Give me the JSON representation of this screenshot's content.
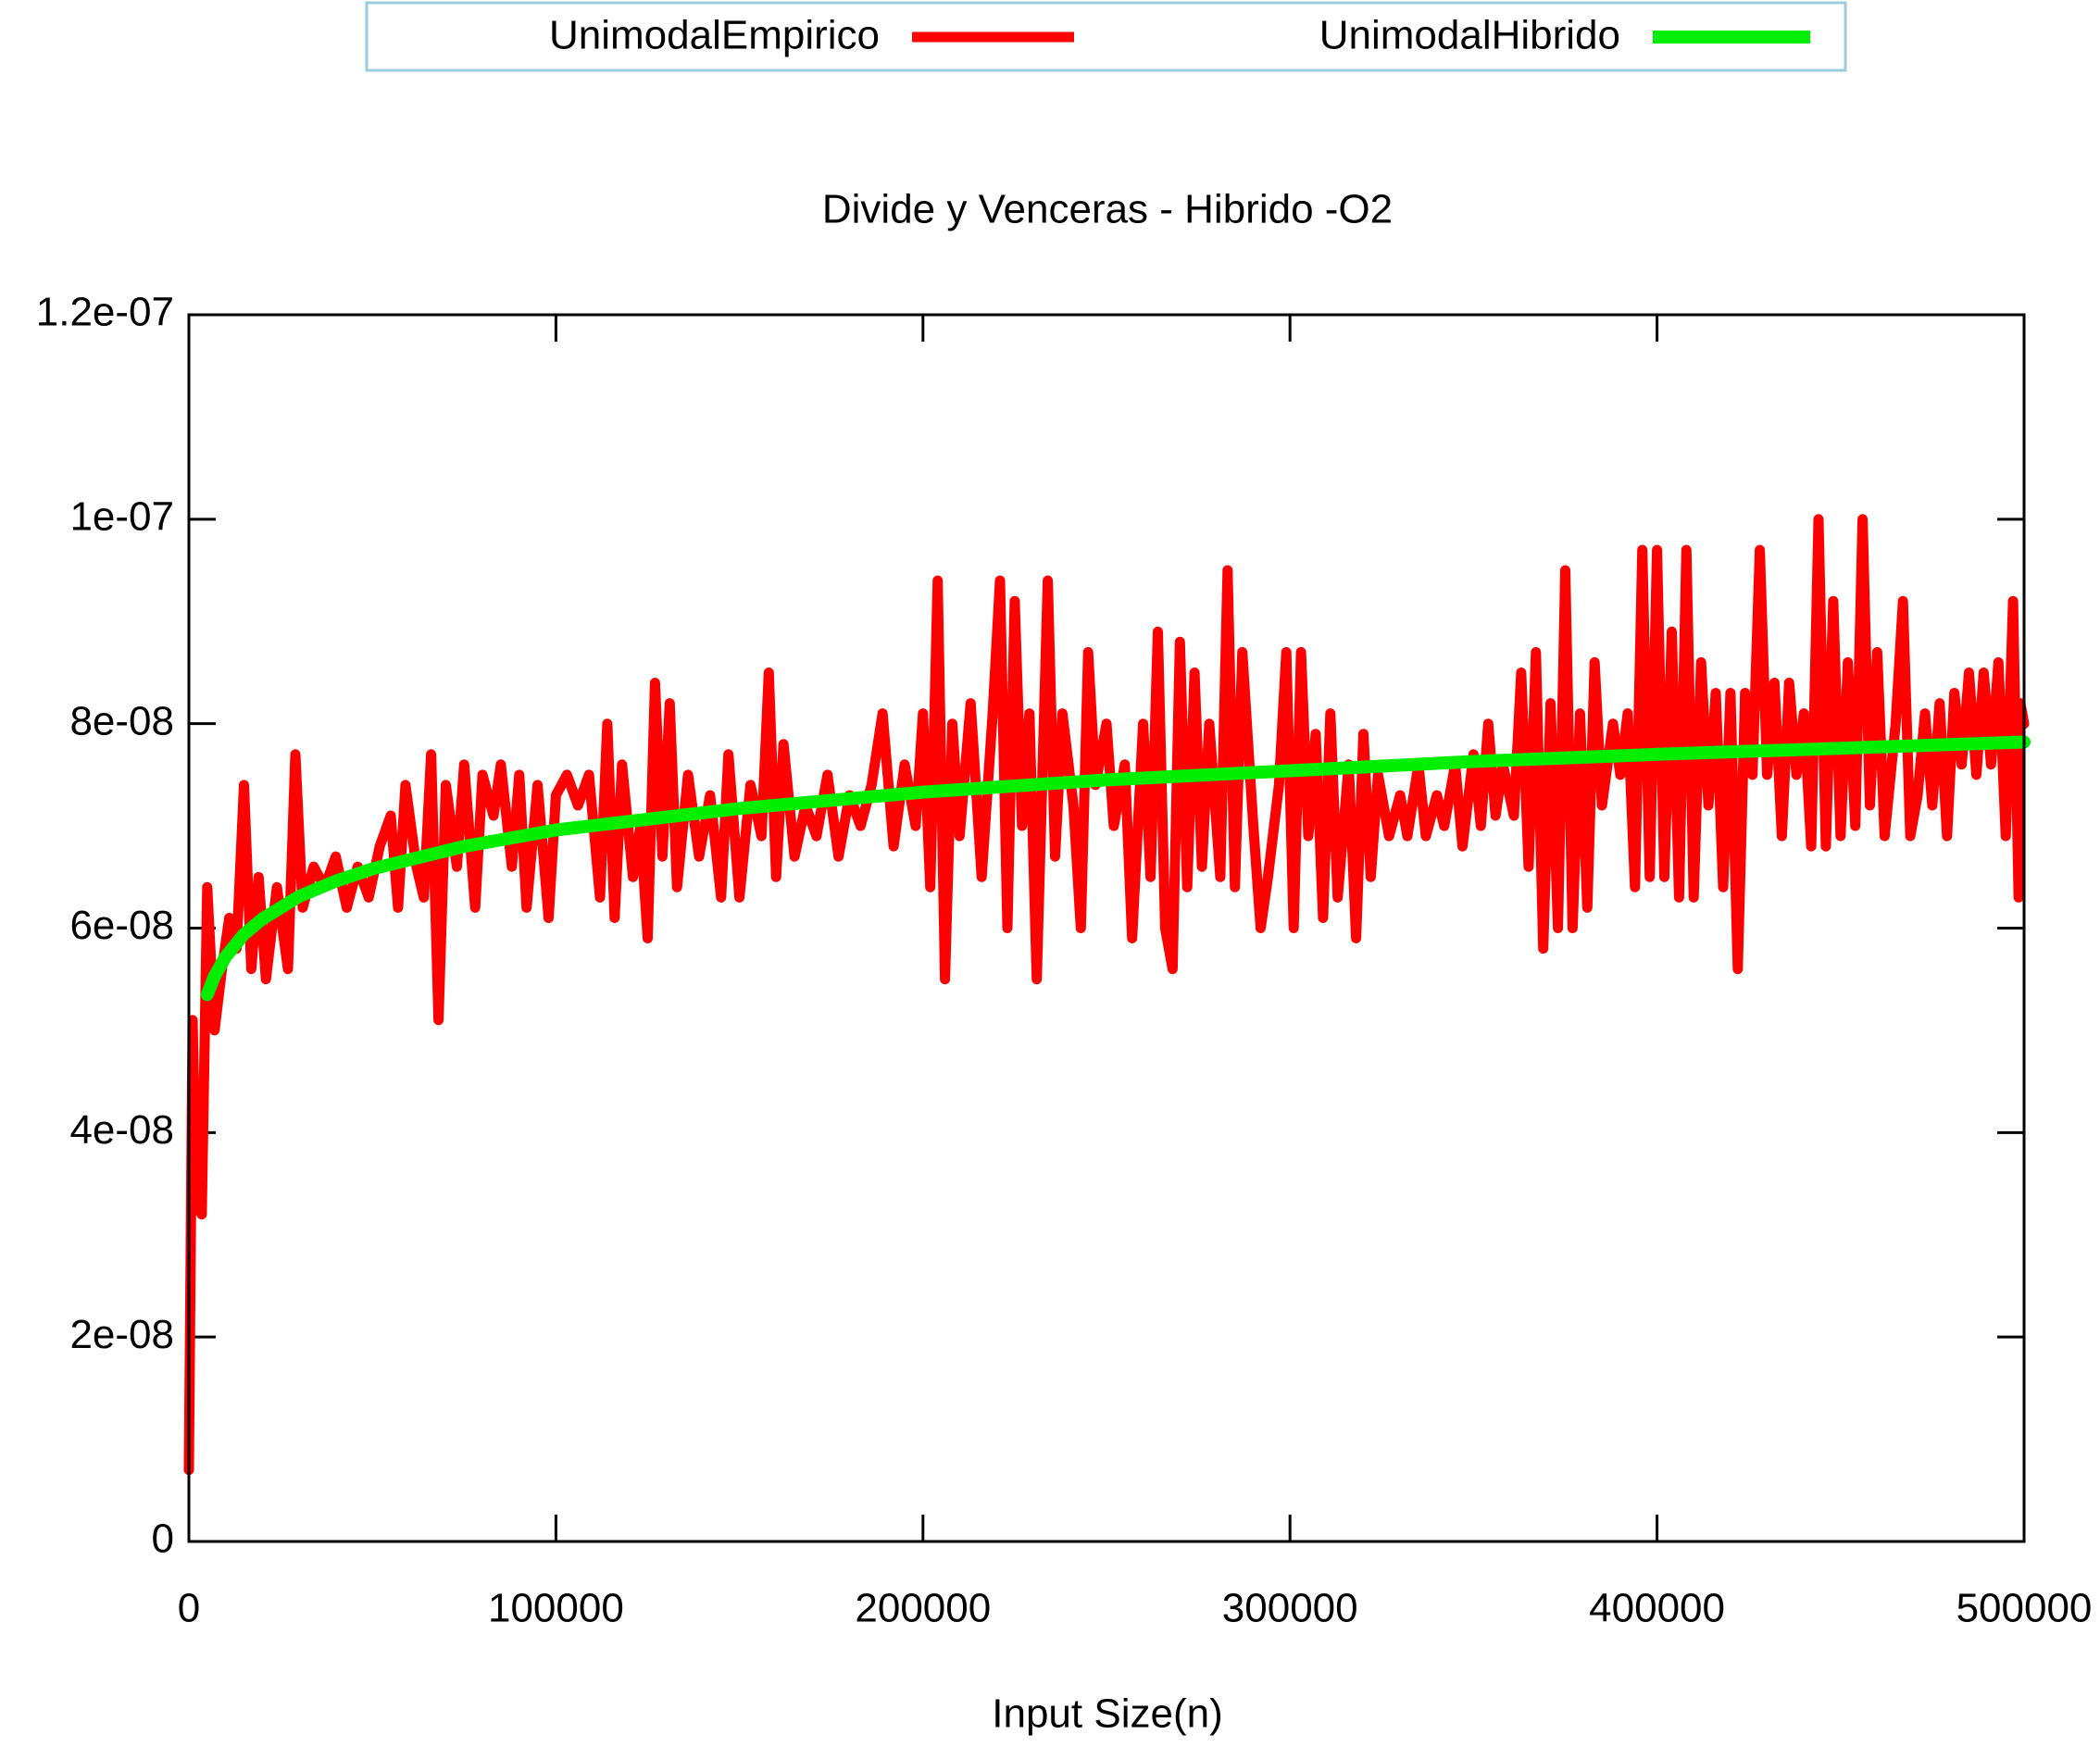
{
  "chart_data": {
    "type": "line",
    "title": "Divide y Venceras - Hibrido -O2",
    "xlabel": "Input Size(n)",
    "legend": "top",
    "xlim": [
      0,
      500000
    ],
    "xticks": [
      0,
      100000,
      200000,
      300000,
      400000,
      500000
    ],
    "ylim": [
      0,
      1.2e-07
    ],
    "yticks": [
      0,
      {
        "value": 2e-08,
        "label": "2e-08"
      },
      {
        "value": 4e-08,
        "label": "4e-08"
      },
      {
        "value": 6e-08,
        "label": "6e-08"
      },
      {
        "value": 8e-08,
        "label": "8e-08"
      },
      {
        "value": 1e-07,
        "label": "1e-07"
      },
      {
        "value": 1.2e-07,
        "label": "1.2e-07"
      }
    ],
    "series": [
      {
        "name": "UnimodalEmpirico",
        "color": "#ff0000",
        "x": [
          0,
          1000,
          2000,
          3500,
          5000,
          7000,
          9000,
          11000,
          13000,
          15000,
          17000,
          19000,
          21000,
          24000,
          27000,
          29000,
          31000,
          34000,
          37000,
          40000,
          43000,
          46000,
          49000,
          52000,
          55000,
          57000,
          59000,
          62000,
          64000,
          66000,
          68000,
          70000,
          73000,
          75000,
          78000,
          80000,
          83000,
          85000,
          88000,
          90000,
          92000,
          95000,
          98000,
          100000,
          103000,
          106000,
          109000,
          112000,
          114000,
          116000,
          118000,
          121000,
          123000,
          125000,
          127000,
          129000,
          131000,
          133000,
          136000,
          139000,
          142000,
          145000,
          147000,
          150000,
          153000,
          156000,
          158000,
          160000,
          162000,
          165000,
          168000,
          171000,
          174000,
          177000,
          180000,
          183000,
          186000,
          189000,
          192000,
          195000,
          198000,
          200000,
          202000,
          204000,
          206000,
          208000,
          210000,
          213000,
          216000,
          219000,
          221000,
          223000,
          225000,
          227000,
          229000,
          231000,
          234000,
          236000,
          238000,
          241000,
          243000,
          245000,
          247000,
          250000,
          252000,
          255000,
          257000,
          260000,
          262000,
          264000,
          266000,
          268000,
          270000,
          272000,
          274000,
          276000,
          278000,
          281000,
          283000,
          285000,
          287000,
          290000,
          292000,
          294000,
          297000,
          299000,
          301000,
          303000,
          305000,
          307000,
          309000,
          311000,
          313000,
          316000,
          318000,
          320000,
          322000,
          324000,
          327000,
          330000,
          332000,
          335000,
          337000,
          340000,
          342000,
          345000,
          347000,
          350000,
          352000,
          354000,
          356000,
          358000,
          361000,
          363000,
          365000,
          367000,
          369000,
          371000,
          373000,
          375000,
          377000,
          379000,
          381000,
          383000,
          385000,
          388000,
          390000,
          392000,
          394000,
          396000,
          398000,
          400000,
          402000,
          404000,
          406000,
          408000,
          410000,
          412000,
          414000,
          416000,
          418000,
          420000,
          422000,
          424000,
          426000,
          428000,
          430000,
          432000,
          434000,
          436000,
          438000,
          440000,
          442000,
          444000,
          446000,
          448000,
          450000,
          452000,
          454000,
          456000,
          458000,
          460000,
          462000,
          465000,
          467000,
          469000,
          471000,
          473000,
          475000,
          477000,
          479000,
          481000,
          483000,
          485000,
          487000,
          489000,
          491000,
          493000,
          495000,
          497000,
          498500,
          499000,
          500000
        ],
        "values": [
          7e-09,
          5.1e-08,
          3.3e-08,
          3.2e-08,
          6.4e-08,
          5e-08,
          5.6e-08,
          6.1e-08,
          5.8e-08,
          7.4e-08,
          5.6e-08,
          6.5e-08,
          5.5e-08,
          6.4e-08,
          5.6e-08,
          7.7e-08,
          6.2e-08,
          6.6e-08,
          6.4e-08,
          6.7e-08,
          6.2e-08,
          6.6e-08,
          6.3e-08,
          6.8e-08,
          7.1e-08,
          6.2e-08,
          7.4e-08,
          6.6e-08,
          6.3e-08,
          7.7e-08,
          5.1e-08,
          7.4e-08,
          6.6e-08,
          7.6e-08,
          6.2e-08,
          7.5e-08,
          7.1e-08,
          7.6e-08,
          6.6e-08,
          7.5e-08,
          6.2e-08,
          7.4e-08,
          6.1e-08,
          7.3e-08,
          7.5e-08,
          7.2e-08,
          7.5e-08,
          6.3e-08,
          8e-08,
          6.1e-08,
          7.6e-08,
          6.5e-08,
          7e-08,
          5.9e-08,
          8.4e-08,
          6.7e-08,
          8.2e-08,
          6.4e-08,
          7.5e-08,
          6.7e-08,
          7.3e-08,
          6.3e-08,
          7.7e-08,
          6.3e-08,
          7.4e-08,
          6.9e-08,
          8.5e-08,
          6.5e-08,
          7.8e-08,
          6.7e-08,
          7.2e-08,
          6.9e-08,
          7.5e-08,
          6.7e-08,
          7.3e-08,
          7e-08,
          7.4e-08,
          8.1e-08,
          6.8e-08,
          7.6e-08,
          7e-08,
          8.1e-08,
          6.4e-08,
          9.4e-08,
          5.5e-08,
          8e-08,
          6.9e-08,
          8.2e-08,
          6.5e-08,
          8.1e-08,
          9.4e-08,
          6e-08,
          9.2e-08,
          7e-08,
          8.1e-08,
          5.5e-08,
          9.4e-08,
          6.7e-08,
          8.1e-08,
          7.2e-08,
          6e-08,
          8.7e-08,
          7.4e-08,
          8e-08,
          7e-08,
          7.6e-08,
          5.9e-08,
          8e-08,
          6.5e-08,
          8.9e-08,
          6e-08,
          5.6e-08,
          8.8e-08,
          6.4e-08,
          8.5e-08,
          6.6e-08,
          8e-08,
          6.5e-08,
          9.5e-08,
          6.4e-08,
          8.7e-08,
          7e-08,
          6e-08,
          6.5e-08,
          7.4e-08,
          8.7e-08,
          6e-08,
          8.7e-08,
          6.9e-08,
          7.9e-08,
          6.1e-08,
          8.1e-08,
          6.3e-08,
          7.6e-08,
          5.9e-08,
          7.9e-08,
          6.5e-08,
          7.5e-08,
          6.9e-08,
          7.3e-08,
          6.9e-08,
          7.6e-08,
          6.9e-08,
          7.3e-08,
          7e-08,
          7.6e-08,
          6.8e-08,
          7.7e-08,
          7e-08,
          8e-08,
          7.1e-08,
          7.6e-08,
          7.1e-08,
          8.5e-08,
          6.6e-08,
          8.7e-08,
          5.8e-08,
          8.2e-08,
          6e-08,
          9.5e-08,
          6e-08,
          8.1e-08,
          6.2e-08,
          8.6e-08,
          7.2e-08,
          8e-08,
          7.5e-08,
          8.1e-08,
          6.4e-08,
          9.7e-08,
          6.5e-08,
          9.7e-08,
          6.5e-08,
          8.9e-08,
          6.3e-08,
          9.7e-08,
          6.3e-08,
          8.6e-08,
          7.2e-08,
          8.3e-08,
          6.4e-08,
          8.3e-08,
          5.6e-08,
          8.3e-08,
          7.5e-08,
          9.7e-08,
          7.5e-08,
          8.4e-08,
          6.9e-08,
          8.4e-08,
          7.5e-08,
          8.1e-08,
          6.8e-08,
          1e-07,
          6.8e-08,
          9.2e-08,
          6.9e-08,
          8.6e-08,
          7e-08,
          1e-07,
          7.2e-08,
          8.7e-08,
          6.9e-08,
          8e-08,
          9.2e-08,
          6.9e-08,
          7.3e-08,
          8.1e-08,
          7.2e-08,
          8.2e-08,
          6.9e-08,
          8.3e-08,
          7.6e-08,
          8.5e-08,
          7.5e-08,
          8.5e-08,
          7.6e-08,
          8.6e-08,
          6.9e-08,
          9.2e-08,
          6.3e-08,
          8.2e-08,
          8e-08
        ]
      },
      {
        "name": "UnimodalHibrido",
        "color": "#00ee00",
        "x": [
          5000,
          7000,
          10000,
          15000,
          20000,
          30000,
          40000,
          50000,
          75000,
          100000,
          150000,
          200000,
          250000,
          300000,
          350000,
          400000,
          450000,
          500000
        ],
        "values": [
          5.35e-08,
          5.53e-08,
          5.72e-08,
          5.94e-08,
          6.09e-08,
          6.31e-08,
          6.46e-08,
          6.58e-08,
          6.8e-08,
          6.96e-08,
          7.17e-08,
          7.33e-08,
          7.45e-08,
          7.54e-08,
          7.63e-08,
          7.7e-08,
          7.76e-08,
          7.82e-08
        ]
      }
    ]
  }
}
